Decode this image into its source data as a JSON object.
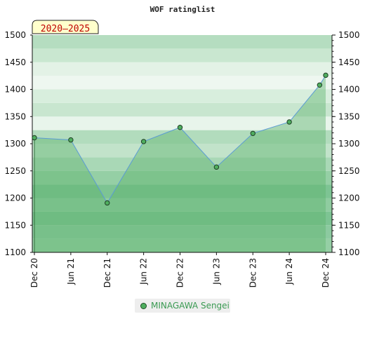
{
  "chart_data": {
    "type": "area",
    "title": "WOF ratinglist",
    "badge": "2020–2025",
    "xlabel": "",
    "ylabel": "",
    "x_tick_labels": [
      "Dec 20",
      "Jun 21",
      "Dec 21",
      "Jun 22",
      "Dec 22",
      "Jun 23",
      "Dec 23",
      "Jun 24",
      "Dec 24"
    ],
    "ylim": [
      1100,
      1500
    ],
    "y_ticks": [
      1100,
      1150,
      1200,
      1250,
      1300,
      1350,
      1400,
      1450,
      1500
    ],
    "y_tick_labels": [
      "1100",
      "1150",
      "1200",
      "1250",
      "1300",
      "1350",
      "1400",
      "1450",
      "1500"
    ],
    "grid": true,
    "legend_position": "bottom-center",
    "series": [
      {
        "name": "MINAGAWA Sengei",
        "color": "#4fae5f",
        "line_color": "#5b9bd5",
        "points": [
          {
            "x": "Dec 20",
            "y": 1311
          },
          {
            "x": "Jun 21",
            "y": 1307
          },
          {
            "x": "Dec 21",
            "y": 1191
          },
          {
            "x": "Jun 22",
            "y": 1304
          },
          {
            "x": "Dec 22",
            "y": 1330
          },
          {
            "x": "Jun 23",
            "y": 1257
          },
          {
            "x": "Dec 23",
            "y": 1319
          },
          {
            "x": "Jun 24",
            "y": 1340
          },
          {
            "x": "Nov 24",
            "y": 1408
          },
          {
            "x": "Dec 24",
            "y": 1426
          }
        ]
      }
    ]
  },
  "legend": {
    "label": "MINAGAWA Sengei"
  }
}
